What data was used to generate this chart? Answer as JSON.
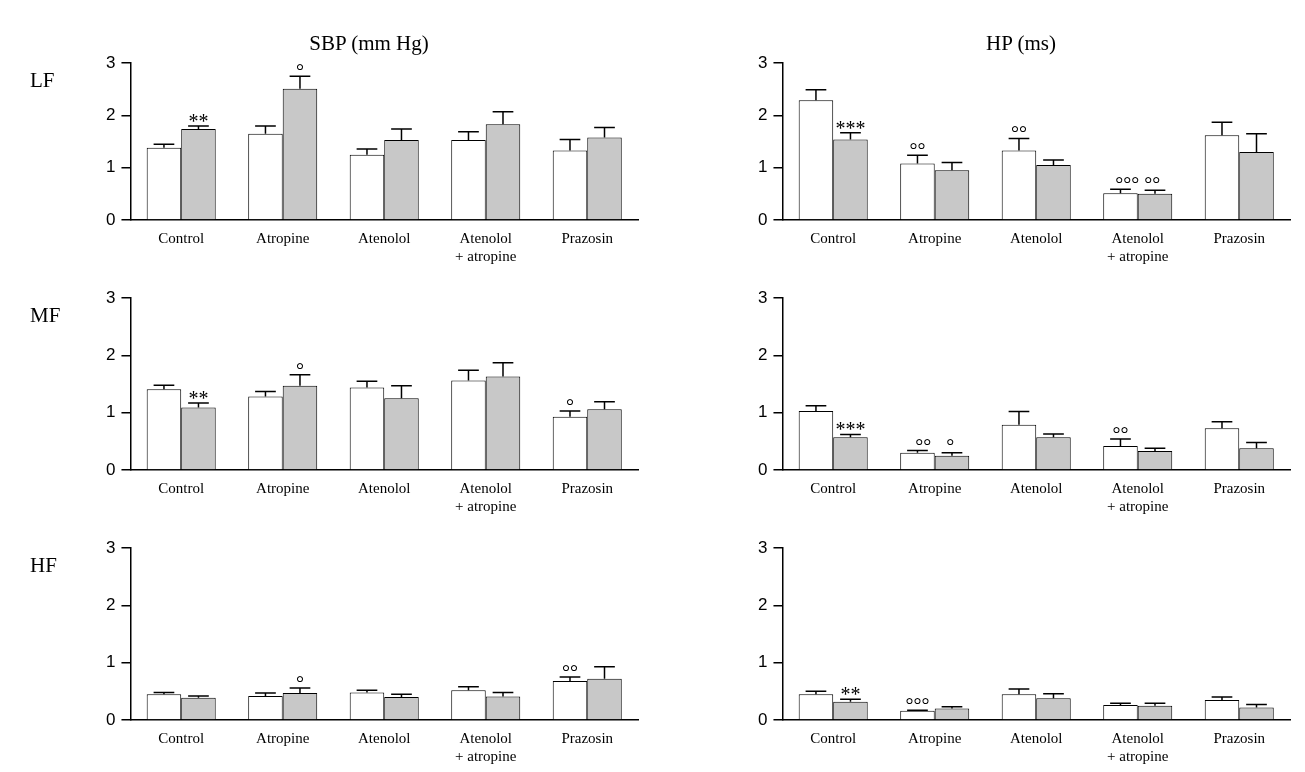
{
  "chart_data": [
    {
      "type": "bar",
      "title": "SBP (mm Hg)",
      "ylabel": "LF",
      "categories": [
        "Control",
        "Atropine",
        "Atenolol",
        "Atenolol\n+ atropine",
        "Prazosin"
      ],
      "series": [
        {
          "color": "#ffffff",
          "values": [
            1.38,
            1.65,
            1.25,
            1.53,
            1.33
          ],
          "errors": [
            [
              1.38,
              1.45
            ],
            [
              1.65,
              1.8
            ],
            [
              1.25,
              1.36
            ],
            [
              1.53,
              1.69
            ],
            [
              1.33,
              1.54
            ]
          ]
        },
        {
          "color": "#c8c8c8",
          "values": [
            1.74,
            2.51,
            1.53,
            1.83,
            1.58
          ],
          "errors": [
            [
              1.74,
              1.8
            ],
            [
              2.51,
              2.75
            ],
            [
              1.53,
              1.74
            ],
            [
              1.83,
              2.07
            ],
            [
              1.58,
              1.77
            ]
          ]
        }
      ],
      "ylim": [
        0,
        3
      ],
      "yticks": [
        0,
        1,
        2,
        3
      ],
      "annotations": [
        "**",
        "°"
      ]
    },
    {
      "type": "bar",
      "title": "HP (ms)",
      "categories": [
        "Control",
        "Atropine",
        "Atenolol",
        "Atenolol\n+ atropine",
        "Prazosin"
      ],
      "series": [
        {
          "color": "#ffffff",
          "values": [
            2.29,
            1.08,
            1.33,
            0.51,
            1.62
          ],
          "errors": [
            [
              2.29,
              2.49
            ],
            [
              1.08,
              1.24
            ],
            [
              1.33,
              1.56
            ],
            [
              0.51,
              0.59
            ],
            [
              1.62,
              1.87
            ]
          ]
        },
        {
          "color": "#c8c8c8",
          "values": [
            1.54,
            0.95,
            1.05,
            0.5,
            1.3
          ],
          "errors": [
            [
              1.54,
              1.67
            ],
            [
              0.95,
              1.1
            ],
            [
              1.05,
              1.15
            ],
            [
              0.5,
              0.57
            ],
            [
              1.3,
              1.65
            ]
          ]
        }
      ],
      "ylim": [
        0,
        3
      ],
      "yticks": [
        0,
        1,
        2,
        3
      ],
      "annotations": [
        "***",
        "°°",
        "°°",
        "°°° °°"
      ]
    },
    {
      "type": "bar",
      "ylabel": "MF",
      "categories": [
        "Control",
        "Atropine",
        "Atenolol",
        "Atenolol\n+ atropine",
        "Prazosin"
      ],
      "series": [
        {
          "color": "#ffffff",
          "values": [
            1.41,
            1.28,
            1.44,
            1.56,
            0.93
          ],
          "errors": [
            [
              1.41,
              1.48
            ],
            [
              1.28,
              1.37
            ],
            [
              1.44,
              1.55
            ],
            [
              1.56,
              1.74
            ],
            [
              0.93,
              1.03
            ]
          ]
        },
        {
          "color": "#c8c8c8",
          "values": [
            1.09,
            1.47,
            1.25,
            1.63,
            1.06
          ],
          "errors": [
            [
              1.09,
              1.17
            ],
            [
              1.47,
              1.66
            ],
            [
              1.25,
              1.47
            ],
            [
              1.63,
              1.87
            ],
            [
              1.06,
              1.19
            ]
          ]
        }
      ],
      "ylim": [
        0,
        3
      ],
      "yticks": [
        0,
        1,
        2,
        3
      ],
      "annotations": [
        "**",
        "°",
        "°"
      ]
    },
    {
      "type": "bar",
      "categories": [
        "Control",
        "Atropine",
        "Atenolol",
        "Atenolol\n+ atropine",
        "Prazosin"
      ],
      "series": [
        {
          "color": "#ffffff",
          "values": [
            1.03,
            0.3,
            0.79,
            0.42,
            0.73
          ],
          "errors": [
            [
              1.03,
              1.12
            ],
            [
              0.3,
              0.34
            ],
            [
              0.79,
              1.02
            ],
            [
              0.42,
              0.54
            ],
            [
              0.73,
              0.84
            ]
          ]
        },
        {
          "color": "#c8c8c8",
          "values": [
            0.57,
            0.25,
            0.57,
            0.33,
            0.38
          ],
          "errors": [
            [
              0.57,
              0.62
            ],
            [
              0.25,
              0.3
            ],
            [
              0.57,
              0.63
            ],
            [
              0.33,
              0.38
            ],
            [
              0.38,
              0.48
            ]
          ]
        }
      ],
      "ylim": [
        0,
        3
      ],
      "yticks": [
        0,
        1,
        2,
        3
      ],
      "annotations": [
        "***",
        "°°   °",
        "°°"
      ]
    },
    {
      "type": "bar",
      "ylabel": "HF",
      "categories": [
        "Control",
        "Atropine",
        "Atenolol",
        "Atenolol\n+ atropine",
        "Prazosin"
      ],
      "series": [
        {
          "color": "#ffffff",
          "values": [
            0.45,
            0.42,
            0.48,
            0.52,
            0.68
          ],
          "errors": [
            [
              0.45,
              0.48
            ],
            [
              0.42,
              0.47
            ],
            [
              0.48,
              0.52
            ],
            [
              0.52,
              0.58
            ],
            [
              0.68,
              0.75
            ]
          ]
        },
        {
          "color": "#c8c8c8",
          "values": [
            0.39,
            0.47,
            0.4,
            0.41,
            0.72
          ],
          "errors": [
            [
              0.39,
              0.42
            ],
            [
              0.47,
              0.56
            ],
            [
              0.4,
              0.45
            ],
            [
              0.41,
              0.48
            ],
            [
              0.72,
              0.93
            ]
          ]
        }
      ],
      "ylim": [
        0,
        3
      ],
      "yticks": [
        0,
        1,
        2,
        3
      ],
      "annotations": [
        "°",
        "°°"
      ]
    },
    {
      "type": "bar",
      "categories": [
        "Control",
        "Atropine",
        "Atenolol",
        "Atenolol\n+ atropine",
        "Prazosin"
      ],
      "series": [
        {
          "color": "#ffffff",
          "values": [
            0.45,
            0.16,
            0.45,
            0.26,
            0.35
          ],
          "errors": [
            [
              0.45,
              0.5
            ],
            [
              0.16,
              0.17
            ],
            [
              0.45,
              0.54
            ],
            [
              0.26,
              0.29
            ],
            [
              0.35,
              0.4
            ]
          ]
        },
        {
          "color": "#c8c8c8",
          "values": [
            0.32,
            0.2,
            0.38,
            0.25,
            0.22
          ],
          "errors": [
            [
              0.32,
              0.36
            ],
            [
              0.2,
              0.23
            ],
            [
              0.38,
              0.46
            ],
            [
              0.25,
              0.29
            ],
            [
              0.22,
              0.27
            ]
          ]
        }
      ],
      "ylim": [
        0,
        3
      ],
      "yticks": [
        0,
        1,
        2,
        3
      ],
      "annotations": [
        "**",
        "°°°"
      ]
    }
  ]
}
